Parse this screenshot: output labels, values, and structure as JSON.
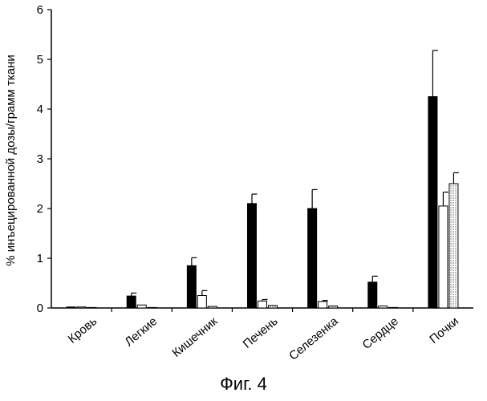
{
  "chart_data": {
    "type": "bar",
    "categories": [
      "Кровь",
      "Легкие",
      "Кишечник",
      "Печень",
      "Селезенка",
      "Сердце",
      "Почки"
    ],
    "series": [
      {
        "values": [
          0.02,
          0.24,
          0.85,
          2.1,
          2.0,
          0.52,
          4.25
        ],
        "errors": [
          0.0,
          0.06,
          0.16,
          0.19,
          0.38,
          0.12,
          0.93
        ],
        "fill": "#000000"
      },
      {
        "values": [
          0.02,
          0.06,
          0.25,
          0.14,
          0.13,
          0.04,
          2.05
        ],
        "errors": [
          0.0,
          0.0,
          0.1,
          0.03,
          0.02,
          0.0,
          0.28
        ],
        "fill": "#ffffff"
      },
      {
        "values": [
          0.01,
          0.01,
          0.03,
          0.05,
          0.04,
          0.01,
          2.5
        ],
        "errors": [
          0.0,
          0.0,
          0.0,
          0.0,
          0.0,
          0.0,
          0.22
        ],
        "fill": "dotted"
      }
    ],
    "ylabel": "% инъецированной дозы/грамм ткани",
    "xlabel": "",
    "ylim": [
      0,
      6
    ],
    "yticks": [
      0,
      1,
      2,
      3,
      4,
      5,
      6
    ],
    "grid": false,
    "legend": "none"
  },
  "figure_caption": "Фиг. 4"
}
